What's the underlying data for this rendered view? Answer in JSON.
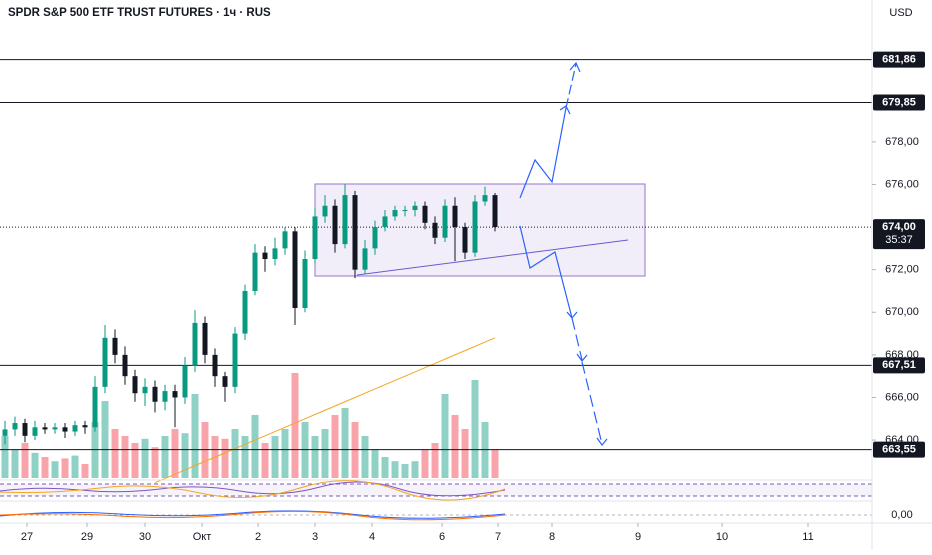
{
  "chart_data": {
    "type": "candlestick",
    "title": "SPDR S&P 500 ETF TRUST FUTURES · 1ч · RUS",
    "currency": "USD",
    "xlim": [
      -0.5,
      86.7
    ],
    "xticks": [
      {
        "value": 2.2,
        "label": "27"
      },
      {
        "value": 8.2,
        "label": "29"
      },
      {
        "value": 14,
        "label": "30"
      },
      {
        "value": 19.7,
        "label": "Окт"
      },
      {
        "value": 25.3,
        "label": "2"
      },
      {
        "value": 31,
        "label": "3"
      },
      {
        "value": 36.7,
        "label": "4"
      },
      {
        "value": 43.7,
        "label": "6"
      },
      {
        "value": 49.3,
        "label": "7"
      },
      {
        "value": 54.7,
        "label": "8"
      },
      {
        "value": 63.3,
        "label": "9"
      },
      {
        "value": 71.7,
        "label": "10"
      },
      {
        "value": 80.3,
        "label": "11"
      }
    ],
    "ylim": [
      662.22,
      684.66
    ],
    "yticks": [
      {
        "value": 664,
        "label": "664,00"
      },
      {
        "value": 666,
        "label": "666,00"
      },
      {
        "value": 668,
        "label": "668,00"
      },
      {
        "value": 670,
        "label": "670,00"
      },
      {
        "value": 672,
        "label": "672,00"
      },
      {
        "value": 676,
        "label": "676,00"
      },
      {
        "value": 678,
        "label": "678,00"
      }
    ],
    "levels": [
      {
        "value": 681.86,
        "label": "681,86"
      },
      {
        "value": 679.85,
        "label": "679,85"
      },
      {
        "value": 667.51,
        "label": "667,51"
      },
      {
        "value": 663.55,
        "label": "663,55"
      }
    ],
    "last_price": {
      "value": 674,
      "label": "674,00"
    },
    "countdown": "35:37",
    "indicator_label": "0,00",
    "up_color": "#089981",
    "down_color": "#131722",
    "candles": [
      [
        664.2,
        664.9,
        663.8,
        664.5
      ],
      [
        664.5,
        665.1,
        664.2,
        664.8
      ],
      [
        664.8,
        665.0,
        663.9,
        664.2
      ],
      [
        664.2,
        664.9,
        664.0,
        664.6
      ],
      [
        664.6,
        664.8,
        664.3,
        664.5
      ],
      [
        664.5,
        664.8,
        664.3,
        664.6
      ],
      [
        664.6,
        664.8,
        664.1,
        664.4
      ],
      [
        664.4,
        664.9,
        664.2,
        664.7
      ],
      [
        664.7,
        664.9,
        664.3,
        664.6
      ],
      [
        664.6,
        667.0,
        664.4,
        666.5
      ],
      [
        666.5,
        669.4,
        666.2,
        668.8
      ],
      [
        668.8,
        669.2,
        667.6,
        668.0
      ],
      [
        668.0,
        668.4,
        666.6,
        667.0
      ],
      [
        667.0,
        667.3,
        665.8,
        666.2
      ],
      [
        666.2,
        666.9,
        665.6,
        666.5
      ],
      [
        666.5,
        666.8,
        665.3,
        665.8
      ],
      [
        665.8,
        666.6,
        665.4,
        666.3
      ],
      [
        666.3,
        666.6,
        664.6,
        666.0
      ],
      [
        666.0,
        667.9,
        665.7,
        667.5
      ],
      [
        667.5,
        670.1,
        667.2,
        669.5
      ],
      [
        669.5,
        669.8,
        667.6,
        668.0
      ],
      [
        668.0,
        668.3,
        666.5,
        667.0
      ],
      [
        667.0,
        667.2,
        665.8,
        666.5
      ],
      [
        666.5,
        669.3,
        666.2,
        669.0
      ],
      [
        669.0,
        671.3,
        668.7,
        671.0
      ],
      [
        671.0,
        673.2,
        670.8,
        672.8
      ],
      [
        672.8,
        673.1,
        671.9,
        672.5
      ],
      [
        672.5,
        673.5,
        672.2,
        673.0
      ],
      [
        673.0,
        674.0,
        672.7,
        673.8
      ],
      [
        673.8,
        674.0,
        669.4,
        670.2
      ],
      [
        670.2,
        672.9,
        670.0,
        672.5
      ],
      [
        672.5,
        674.9,
        672.3,
        674.5
      ],
      [
        674.5,
        675.5,
        674.2,
        675.0
      ],
      [
        675.0,
        675.3,
        672.8,
        673.2
      ],
      [
        673.2,
        676.0,
        673.0,
        675.5
      ],
      [
        675.5,
        675.7,
        671.6,
        672.0
      ],
      [
        672.0,
        673.4,
        671.8,
        673.0
      ],
      [
        673.0,
        674.3,
        672.7,
        674.0
      ],
      [
        674.0,
        674.8,
        673.8,
        674.5
      ],
      [
        674.5,
        675.0,
        674.3,
        674.8
      ],
      [
        674.8,
        675.0,
        674.5,
        674.8
      ],
      [
        674.8,
        675.2,
        674.5,
        675.0
      ],
      [
        675.0,
        675.2,
        673.9,
        674.2
      ],
      [
        674.2,
        674.5,
        673.2,
        673.5
      ],
      [
        673.5,
        675.3,
        673.3,
        675.0
      ],
      [
        675.0,
        675.4,
        672.4,
        674.0
      ],
      [
        674.0,
        674.2,
        672.5,
        672.8
      ],
      [
        672.8,
        675.5,
        672.6,
        675.2
      ],
      [
        675.2,
        675.9,
        675.0,
        675.5
      ],
      [
        675.5,
        675.6,
        673.8,
        674.0
      ]
    ],
    "volume": [
      30,
      20,
      25,
      18,
      15,
      12,
      14,
      16,
      10,
      40,
      55,
      35,
      30,
      25,
      28,
      22,
      30,
      35,
      32,
      60,
      40,
      30,
      28,
      35,
      30,
      45,
      25,
      30,
      35,
      75,
      40,
      30,
      35,
      45,
      50,
      40,
      30,
      20,
      15,
      12,
      10,
      12,
      20,
      25,
      60,
      45,
      35,
      70,
      40,
      20
    ],
    "ma": {
      "color": "#f5a623",
      "values": [
        null,
        null,
        null,
        null,
        null,
        null,
        null,
        null,
        null,
        null,
        null,
        null,
        null,
        null,
        null,
        662.0,
        662.2,
        662.4,
        662.6,
        662.8,
        663.0,
        663.2,
        663.4,
        663.6,
        663.8,
        664.0,
        664.2,
        664.4,
        664.6,
        664.8,
        665.0,
        665.2,
        665.4,
        665.6,
        665.8,
        666.0,
        666.2,
        666.4,
        666.6,
        666.8,
        667.0,
        667.2,
        667.4,
        667.6,
        667.8,
        668.0,
        668.2,
        668.4,
        668.6,
        668.8
      ]
    }
  }
}
